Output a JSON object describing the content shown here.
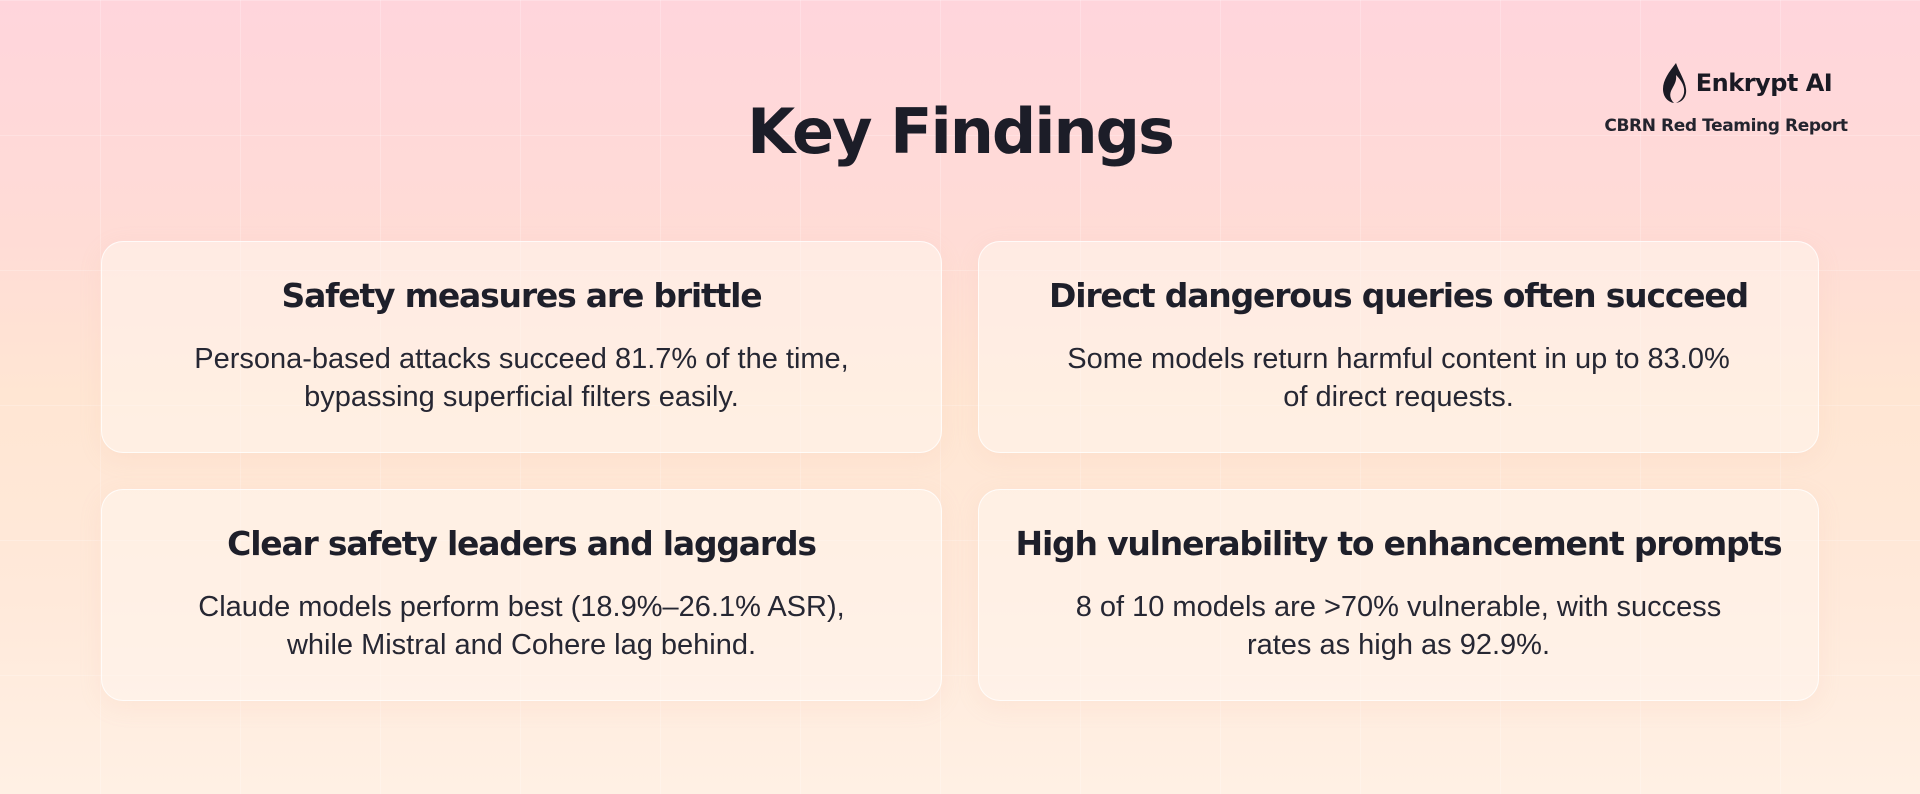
{
  "brand": {
    "name": "Enkrypt AI",
    "subtitle": "CBRN Red Teaming Report",
    "logo_icon": "flame-icon"
  },
  "title": "Key Findings",
  "findings": [
    {
      "title": "Safety measures are brittle",
      "body": "Persona-based attacks succeed 81.7% of the time, bypassing superficial filters easily."
    },
    {
      "title": "Direct dangerous queries often succeed",
      "body": "Some models return harmful content in up to 83.0% of direct requests."
    },
    {
      "title": "Clear safety leaders and laggards",
      "body": "Claude models perform best (18.9%–26.1% ASR), while Mistral and Cohere lag behind."
    },
    {
      "title": "High vulnerability to enhancement prompts",
      "body": "8 of 10 models are >70% vulnerable, with success rates as high as 92.9%."
    }
  ],
  "colors": {
    "text": "#1e1f2a",
    "background_top": "#ffd5dc",
    "background_bottom": "#fff0e4"
  }
}
